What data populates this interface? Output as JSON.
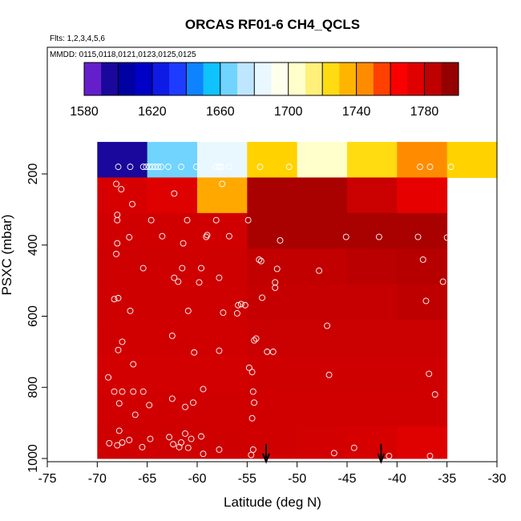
{
  "chart_data": {
    "type": "heatmap",
    "title": "ORCAS RF01-6 CH4_QCLS",
    "subtitle_flights": "Flts: 1,2,3,4,5,6",
    "subtitle_dates": "MMDD: 0115,0118,0121,0123,0125,0125",
    "xlabel": "Latitude (deg N)",
    "ylabel": "PSXC (mbar)",
    "xlim": [
      -75,
      -30
    ],
    "ylim": [
      1000,
      50
    ],
    "y_inverted": true,
    "x_ticks": [
      -75,
      -70,
      -65,
      -60,
      -55,
      -50,
      -45,
      -40,
      -35,
      -30
    ],
    "y_ticks": [
      200,
      400,
      600,
      800,
      1000
    ],
    "colorbar": {
      "min": 1580,
      "max": 1800,
      "ticks": [
        1580,
        1620,
        1660,
        1700,
        1740,
        1780
      ],
      "stops": [
        "#8a2be2",
        "#00008b",
        "#0000cd",
        "#1e3cff",
        "#00bfff",
        "#b0e0ff",
        "#ffffff",
        "#ffffc0",
        "#ffd700",
        "#ff8c00",
        "#ff0000",
        "#cc0000",
        "#800000"
      ]
    },
    "grid": {
      "lat_edges": [
        -70,
        -65,
        -60,
        -55,
        -50,
        -45,
        -40,
        -35,
        -30
      ],
      "p_edges": [
        110,
        210,
        310,
        410,
        510,
        610,
        710,
        810,
        910,
        1000
      ],
      "values": [
        [
          1595,
          1665,
          1685,
          1728,
          1705,
          1725,
          1745,
          1728
        ],
        [
          1778,
          1775,
          1738,
          1790,
          1790,
          1782,
          1772,
          null
        ],
        [
          1780,
          1780,
          1780,
          1790,
          1790,
          1790,
          1790,
          null
        ],
        [
          1781,
          1781,
          1781,
          1784,
          1784,
          1786,
          1787,
          null
        ],
        [
          1781,
          1781,
          1781,
          1783,
          1783,
          1783,
          1785,
          null
        ],
        [
          1780,
          1780,
          1780,
          1782,
          1782,
          1782,
          1782,
          null
        ],
        [
          1779,
          1779,
          1779,
          1781,
          1781,
          1781,
          1781,
          null
        ],
        [
          1780,
          1780,
          1780,
          1780,
          1780,
          1780,
          1780,
          null
        ],
        [
          1781,
          1781,
          1781,
          1780,
          1779,
          1778,
          1775,
          null
        ]
      ]
    },
    "samples": [
      [
        -67.9,
        180
      ],
      [
        -66.7,
        180
      ],
      [
        -65.4,
        180
      ],
      [
        -65.1,
        180
      ],
      [
        -64.8,
        180
      ],
      [
        -64.5,
        180
      ],
      [
        -64.2,
        180
      ],
      [
        -63.9,
        180
      ],
      [
        -63.6,
        180
      ],
      [
        -62.9,
        180
      ],
      [
        -61.6,
        180
      ],
      [
        -60.1,
        180
      ],
      [
        -58.1,
        180
      ],
      [
        -57.8,
        180
      ],
      [
        -57.6,
        180
      ],
      [
        -56.8,
        180
      ],
      [
        -53.7,
        180
      ],
      [
        -50.8,
        180
      ],
      [
        -37.7,
        180
      ],
      [
        -36.7,
        180
      ],
      [
        -34.6,
        180
      ],
      [
        -68.1,
        228
      ],
      [
        -67.6,
        243
      ],
      [
        -66.5,
        285
      ],
      [
        -62.3,
        255
      ],
      [
        -57.5,
        228
      ],
      [
        -58.1,
        330
      ],
      [
        -68.0,
        315
      ],
      [
        -68.0,
        330
      ],
      [
        -64.6,
        330
      ],
      [
        -61.0,
        330
      ],
      [
        -54.9,
        330
      ],
      [
        -68.0,
        395
      ],
      [
        -66.8,
        378
      ],
      [
        -63.5,
        375
      ],
      [
        -61.4,
        395
      ],
      [
        -59.0,
        372
      ],
      [
        -59.1,
        377
      ],
      [
        -56.8,
        375
      ],
      [
        -51.7,
        387
      ],
      [
        -45.1,
        377
      ],
      [
        -41.8,
        377
      ],
      [
        -37.9,
        377
      ],
      [
        -35.0,
        379
      ],
      [
        -68.1,
        425
      ],
      [
        -65.4,
        465
      ],
      [
        -62.3,
        492
      ],
      [
        -61.5,
        465
      ],
      [
        -61.9,
        503
      ],
      [
        -59.8,
        505
      ],
      [
        -59.6,
        465
      ],
      [
        -57.8,
        492
      ],
      [
        -53.8,
        441
      ],
      [
        -53.6,
        445
      ],
      [
        -52.0,
        467
      ],
      [
        -47.8,
        472
      ],
      [
        -37.4,
        441
      ],
      [
        -35.4,
        503
      ],
      [
        -52.2,
        505
      ],
      [
        -52.2,
        520
      ],
      [
        -55.9,
        569
      ],
      [
        -55.6,
        566
      ],
      [
        -55.2,
        569
      ],
      [
        -53.5,
        548
      ],
      [
        -68.3,
        552
      ],
      [
        -67.9,
        549
      ],
      [
        -66.7,
        585
      ],
      [
        -60.9,
        585
      ],
      [
        -57.4,
        590
      ],
      [
        -56.0,
        592
      ],
      [
        -37.1,
        557
      ],
      [
        -67.9,
        695
      ],
      [
        -67.5,
        672
      ],
      [
        -62.5,
        655
      ],
      [
        -60.3,
        702
      ],
      [
        -57.8,
        697
      ],
      [
        -54.3,
        668
      ],
      [
        -54.1,
        663
      ],
      [
        -53.0,
        700
      ],
      [
        -52.4,
        700
      ],
      [
        -47.0,
        627
      ],
      [
        -36.8,
        762
      ],
      [
        -68.9,
        772
      ],
      [
        -68.3,
        812
      ],
      [
        -67.5,
        812
      ],
      [
        -67.8,
        845
      ],
      [
        -66.4,
        812
      ],
      [
        -65.4,
        812
      ],
      [
        -66.4,
        735
      ],
      [
        -66.2,
        877
      ],
      [
        -64.8,
        850
      ],
      [
        -62.5,
        832
      ],
      [
        -61.2,
        855
      ],
      [
        -60.4,
        843
      ],
      [
        -59.4,
        805
      ],
      [
        -54.8,
        745
      ],
      [
        -54.5,
        757
      ],
      [
        -54.4,
        812
      ],
      [
        -54.3,
        843
      ],
      [
        -54.5,
        887
      ],
      [
        -46.8,
        765
      ],
      [
        -36.2,
        820
      ],
      [
        -68.8,
        957
      ],
      [
        -68.0,
        963
      ],
      [
        -67.8,
        922
      ],
      [
        -67.5,
        955
      ],
      [
        -66.8,
        948
      ],
      [
        -65.5,
        968
      ],
      [
        -64.7,
        945
      ],
      [
        -62.8,
        940
      ],
      [
        -62.4,
        960
      ],
      [
        -61.8,
        968
      ],
      [
        -61.2,
        930
      ],
      [
        -60.6,
        945
      ],
      [
        -60.9,
        970
      ],
      [
        -59.6,
        938
      ],
      [
        -57.8,
        975
      ],
      [
        -59.4,
        987
      ],
      [
        -61.6,
        955
      ],
      [
        -54.6,
        990
      ],
      [
        -54.4,
        975
      ],
      [
        -46.3,
        985
      ],
      [
        -44.3,
        970
      ],
      [
        -40.8,
        993
      ],
      [
        -36.7,
        993
      ]
    ],
    "arrows_lat": [
      -53.1,
      -41.6
    ]
  }
}
